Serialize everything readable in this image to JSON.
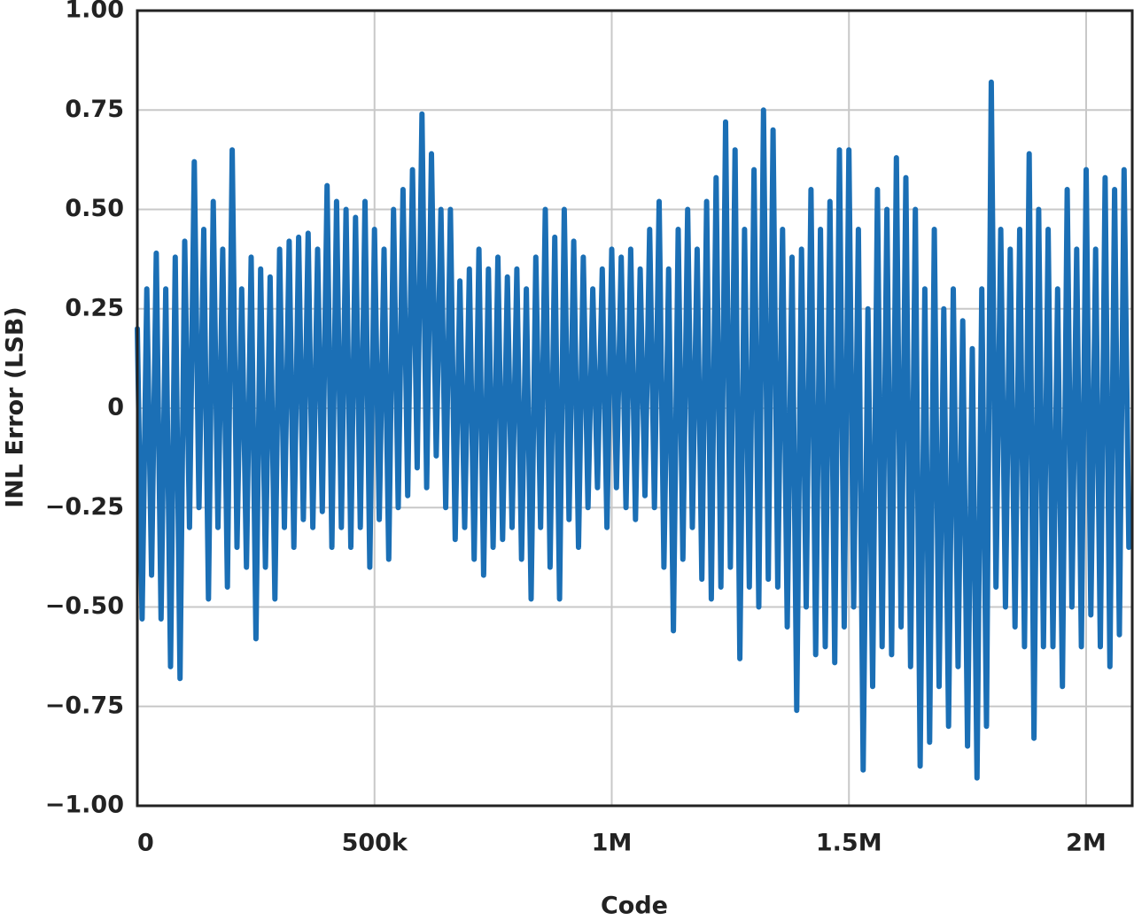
{
  "chart_data": {
    "type": "line",
    "xlabel": "Code",
    "ylabel": "INL Error (LSB)",
    "color": "#1b6fb5",
    "grid": true,
    "xlim": [
      0,
      2097152
    ],
    "xticks": [
      0,
      {
        "value": 500000,
        "label": "500k"
      },
      {
        "value": 1000000,
        "label": "1M"
      },
      {
        "value": 1500000,
        "label": "1.5M"
      },
      {
        "value": 2000000,
        "label": "2M"
      }
    ],
    "ylim": [
      -1,
      1
    ],
    "yticks": [
      {
        "value": 1,
        "label": "1.00"
      },
      {
        "value": 0.75,
        "label": "0.75"
      },
      {
        "value": 0.5,
        "label": "0.50"
      },
      {
        "value": 0.25,
        "label": "0.25"
      },
      0,
      {
        "value": -0.25,
        "label": "−0.25"
      },
      {
        "value": -0.5,
        "label": "−0.50"
      },
      {
        "value": -0.75,
        "label": "−0.75"
      },
      {
        "value": -1,
        "label": "−1.00"
      }
    ],
    "x": [
      0,
      10000,
      20000,
      30000,
      40000,
      50000,
      60000,
      70000,
      80000,
      90000,
      100000,
      110000,
      120000,
      130000,
      140000,
      150000,
      160000,
      170000,
      180000,
      190000,
      200000,
      210000,
      220000,
      230000,
      240000,
      250000,
      260000,
      270000,
      280000,
      290000,
      300000,
      310000,
      320000,
      330000,
      340000,
      350000,
      360000,
      370000,
      380000,
      390000,
      400000,
      410000,
      420000,
      430000,
      440000,
      450000,
      460000,
      470000,
      480000,
      490000,
      500000,
      510000,
      520000,
      530000,
      540000,
      550000,
      560000,
      570000,
      580000,
      590000,
      600000,
      610000,
      620000,
      630000,
      640000,
      650000,
      660000,
      670000,
      680000,
      690000,
      700000,
      710000,
      720000,
      730000,
      740000,
      750000,
      760000,
      770000,
      780000,
      790000,
      800000,
      810000,
      820000,
      830000,
      840000,
      850000,
      860000,
      870000,
      880000,
      890000,
      900000,
      910000,
      920000,
      930000,
      940000,
      950000,
      960000,
      970000,
      980000,
      990000,
      1000000,
      1010000,
      1020000,
      1030000,
      1040000,
      1050000,
      1060000,
      1070000,
      1080000,
      1090000,
      1100000,
      1110000,
      1120000,
      1130000,
      1140000,
      1150000,
      1160000,
      1170000,
      1180000,
      1190000,
      1200000,
      1210000,
      1220000,
      1230000,
      1240000,
      1250000,
      1260000,
      1270000,
      1280000,
      1290000,
      1300000,
      1310000,
      1320000,
      1330000,
      1340000,
      1350000,
      1360000,
      1370000,
      1380000,
      1390000,
      1400000,
      1410000,
      1420000,
      1430000,
      1440000,
      1450000,
      1460000,
      1470000,
      1480000,
      1490000,
      1500000,
      1510000,
      1520000,
      1530000,
      1540000,
      1550000,
      1560000,
      1570000,
      1580000,
      1590000,
      1600000,
      1610000,
      1620000,
      1630000,
      1640000,
      1650000,
      1660000,
      1670000,
      1680000,
      1690000,
      1700000,
      1710000,
      1720000,
      1730000,
      1740000,
      1750000,
      1760000,
      1770000,
      1780000,
      1790000,
      1800000,
      1810000,
      1820000,
      1830000,
      1840000,
      1850000,
      1860000,
      1870000,
      1880000,
      1890000,
      1900000,
      1910000,
      1920000,
      1930000,
      1940000,
      1950000,
      1960000,
      1970000,
      1980000,
      1990000,
      2000000,
      2010000,
      2020000,
      2030000,
      2040000,
      2050000,
      2060000,
      2070000,
      2080000,
      2090000
    ],
    "values": [
      0.2,
      -0.53,
      0.3,
      -0.42,
      0.39,
      -0.53,
      0.3,
      -0.65,
      0.38,
      -0.68,
      0.42,
      -0.3,
      0.62,
      -0.25,
      0.45,
      -0.48,
      0.52,
      -0.3,
      0.4,
      -0.45,
      0.65,
      -0.35,
      0.3,
      -0.4,
      0.38,
      -0.58,
      0.35,
      -0.4,
      0.33,
      -0.48,
      0.4,
      -0.3,
      0.42,
      -0.35,
      0.43,
      -0.28,
      0.44,
      -0.3,
      0.4,
      -0.26,
      0.56,
      -0.35,
      0.52,
      -0.3,
      0.5,
      -0.35,
      0.48,
      -0.3,
      0.52,
      -0.4,
      0.45,
      -0.28,
      0.4,
      -0.38,
      0.5,
      -0.25,
      0.55,
      -0.22,
      0.6,
      -0.15,
      0.74,
      -0.2,
      0.64,
      -0.12,
      0.5,
      -0.25,
      0.5,
      -0.33,
      0.32,
      -0.3,
      0.35,
      -0.38,
      0.4,
      -0.42,
      0.35,
      -0.35,
      0.38,
      -0.33,
      0.33,
      -0.3,
      0.35,
      -0.38,
      0.3,
      -0.48,
      0.38,
      -0.3,
      0.5,
      -0.4,
      0.43,
      -0.48,
      0.5,
      -0.28,
      0.42,
      -0.35,
      0.38,
      -0.25,
      0.3,
      -0.2,
      0.35,
      -0.3,
      0.4,
      -0.2,
      0.38,
      -0.25,
      0.4,
      -0.28,
      0.35,
      -0.22,
      0.45,
      -0.25,
      0.52,
      -0.4,
      0.35,
      -0.56,
      0.45,
      -0.38,
      0.5,
      -0.3,
      0.4,
      -0.43,
      0.52,
      -0.48,
      0.58,
      -0.45,
      0.72,
      -0.4,
      0.65,
      -0.63,
      0.45,
      -0.45,
      0.6,
      -0.5,
      0.75,
      -0.43,
      0.7,
      -0.45,
      0.45,
      -0.55,
      0.38,
      -0.76,
      0.4,
      -0.5,
      0.55,
      -0.62,
      0.45,
      -0.6,
      0.52,
      -0.64,
      0.65,
      -0.55,
      0.65,
      -0.5,
      0.45,
      -0.91,
      0.25,
      -0.7,
      0.55,
      -0.6,
      0.5,
      -0.62,
      0.63,
      -0.55,
      0.58,
      -0.65,
      0.5,
      -0.9,
      0.3,
      -0.84,
      0.45,
      -0.7,
      0.25,
      -0.8,
      0.3,
      -0.65,
      0.22,
      -0.85,
      0.15,
      -0.93,
      0.3,
      -0.8,
      0.82,
      -0.45,
      0.45,
      -0.5,
      0.4,
      -0.55,
      0.45,
      -0.6,
      0.64,
      -0.83,
      0.5,
      -0.6,
      0.45,
      -0.6,
      0.3,
      -0.7,
      0.55,
      -0.5,
      0.4,
      -0.6,
      0.6,
      -0.52,
      0.4,
      -0.6,
      0.58,
      -0.65,
      0.55,
      -0.57,
      0.6,
      -0.35
    ]
  }
}
